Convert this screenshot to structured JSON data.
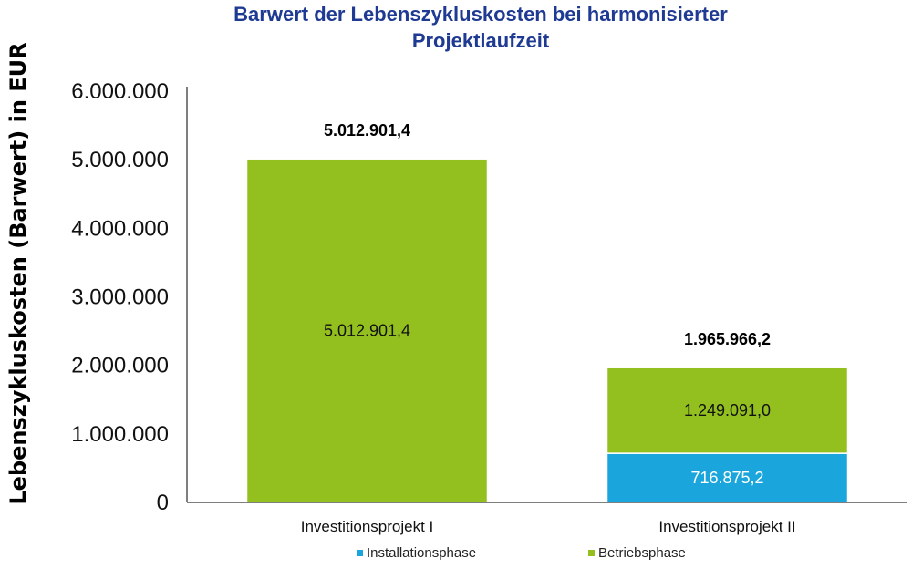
{
  "chart_data": {
    "type": "bar",
    "stacked": true,
    "title_lines": [
      "Barwert der Lebenszykluskosten bei harmonisierter",
      "Projektlaufzeit"
    ],
    "ylabel": "Lebenszykluskosten (Barwert) in EUR",
    "xlabel": "",
    "categories": [
      "Investitionsprojekt I",
      "Investitionsprojekt II"
    ],
    "ylim": [
      0,
      6000000
    ],
    "yticks": [
      0,
      1000000,
      2000000,
      3000000,
      4000000,
      5000000,
      6000000
    ],
    "ytick_labels": [
      "0",
      "1.000.000",
      "2.000.000",
      "3.000.000",
      "4.000.000",
      "5.000.000",
      "6.000.000"
    ],
    "series": [
      {
        "name": "Installationsphase",
        "color": "#1aa6dc",
        "label_color": "#ffffff",
        "values": [
          0,
          716875.2
        ],
        "labels": [
          "",
          "716.875,2"
        ]
      },
      {
        "name": "Betriebsphase",
        "color": "#93c01f",
        "label_color": "#111111",
        "values": [
          5012901.4,
          1249091.0
        ],
        "labels": [
          "5.012.901,4",
          "1.249.091,0"
        ]
      }
    ],
    "totals": [
      5012901.4,
      1965966.2
    ],
    "total_labels": [
      "5.012.901,4",
      "1.965.966,2"
    ],
    "legend_position": "bottom",
    "grid": false,
    "title_color": "#1f3a93"
  }
}
